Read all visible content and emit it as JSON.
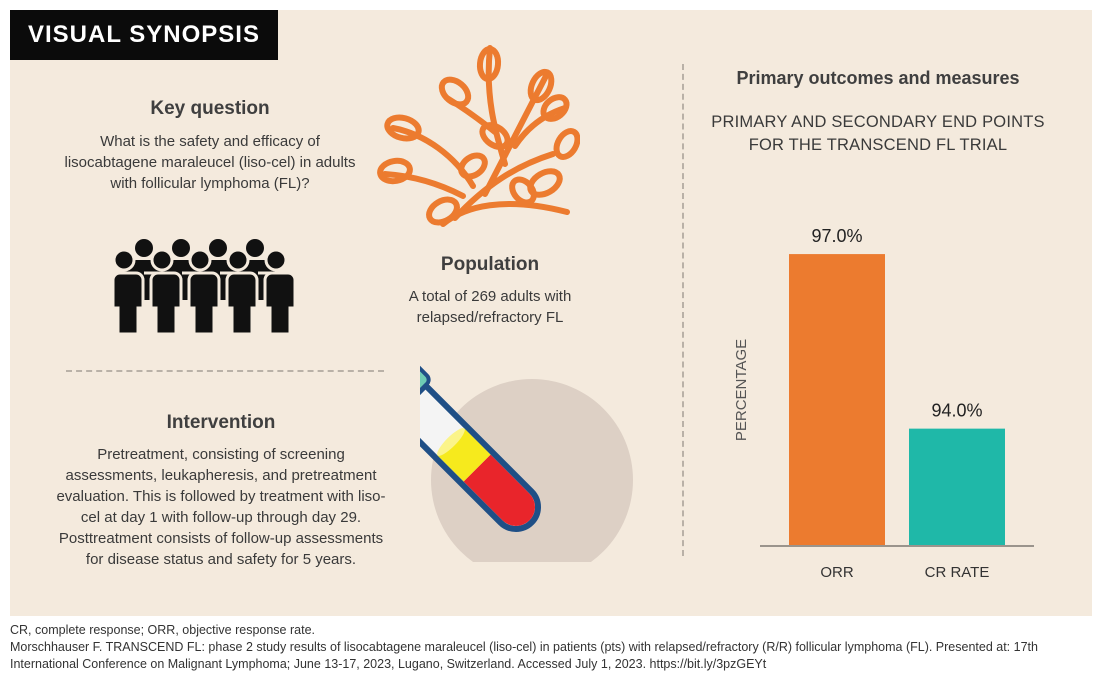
{
  "title_tag": "VISUAL SYNOPSIS",
  "key_question": {
    "heading": "Key question",
    "text": "What is the safety and efficacy of lisocabtagene maraleucel (liso-cel) in adults with follicular lymphoma (FL)?"
  },
  "population": {
    "heading": "Population",
    "text": "A total of 269 adults with relapsed/refractory FL"
  },
  "intervention": {
    "heading": "Intervention",
    "text": "Pretreatment, consisting of screening assessments, leukapheresis, and pretreatment evaluation. This is followed by treatment with liso-cel at day 1 with follow-up through day 29. Posttreatment consists of follow-up assessments for disease status and safety for 5 years."
  },
  "outcomes": {
    "heading": "Primary outcomes and measures",
    "subtitle_line1": "PRIMARY AND SECONDARY END POINTS",
    "subtitle_line2": "FOR THE TRANSCEND FL TRIAL"
  },
  "icons": {
    "cells": "branched-cells-icon",
    "people": "people-group-icon",
    "tube": "blood-test-tube-icon"
  },
  "colors": {
    "panel": "#f4eadd",
    "orange": "#ec7b2f",
    "teal": "#1fb8a8",
    "tube_red": "#e9252b",
    "tube_yellow": "#f6ea1d",
    "tube_cap": "#6dcbb4",
    "circle": "#ddd0c5"
  },
  "chart_data": {
    "type": "bar",
    "categories": [
      "ORR",
      "CR RATE"
    ],
    "values": [
      97.0,
      94.0
    ],
    "data_labels": [
      "97.0%",
      "94.0%"
    ],
    "ylabel": "PERCENTAGE",
    "xlabel": "",
    "colors": [
      "#ec7b2f",
      "#1fb8a8"
    ],
    "baseline_value": 92.0,
    "ymax_value": 97.5,
    "grid": false,
    "legend": "none"
  },
  "footnotes": {
    "abbrev": "CR, complete response; ORR, objective response rate.",
    "reference": "Morschhauser F. TRANSCEND FL: phase 2 study results of lisocabtagene maraleucel (liso-cel) in patients (pts) with relapsed/refractory (R/R) follicular lymphoma (FL). Presented at: 17th International Conference on Malignant Lymphoma; June 13-17, 2023, Lugano, Switzerland. Accessed July 1, 2023. https://bit.ly/3pzGEYt"
  }
}
